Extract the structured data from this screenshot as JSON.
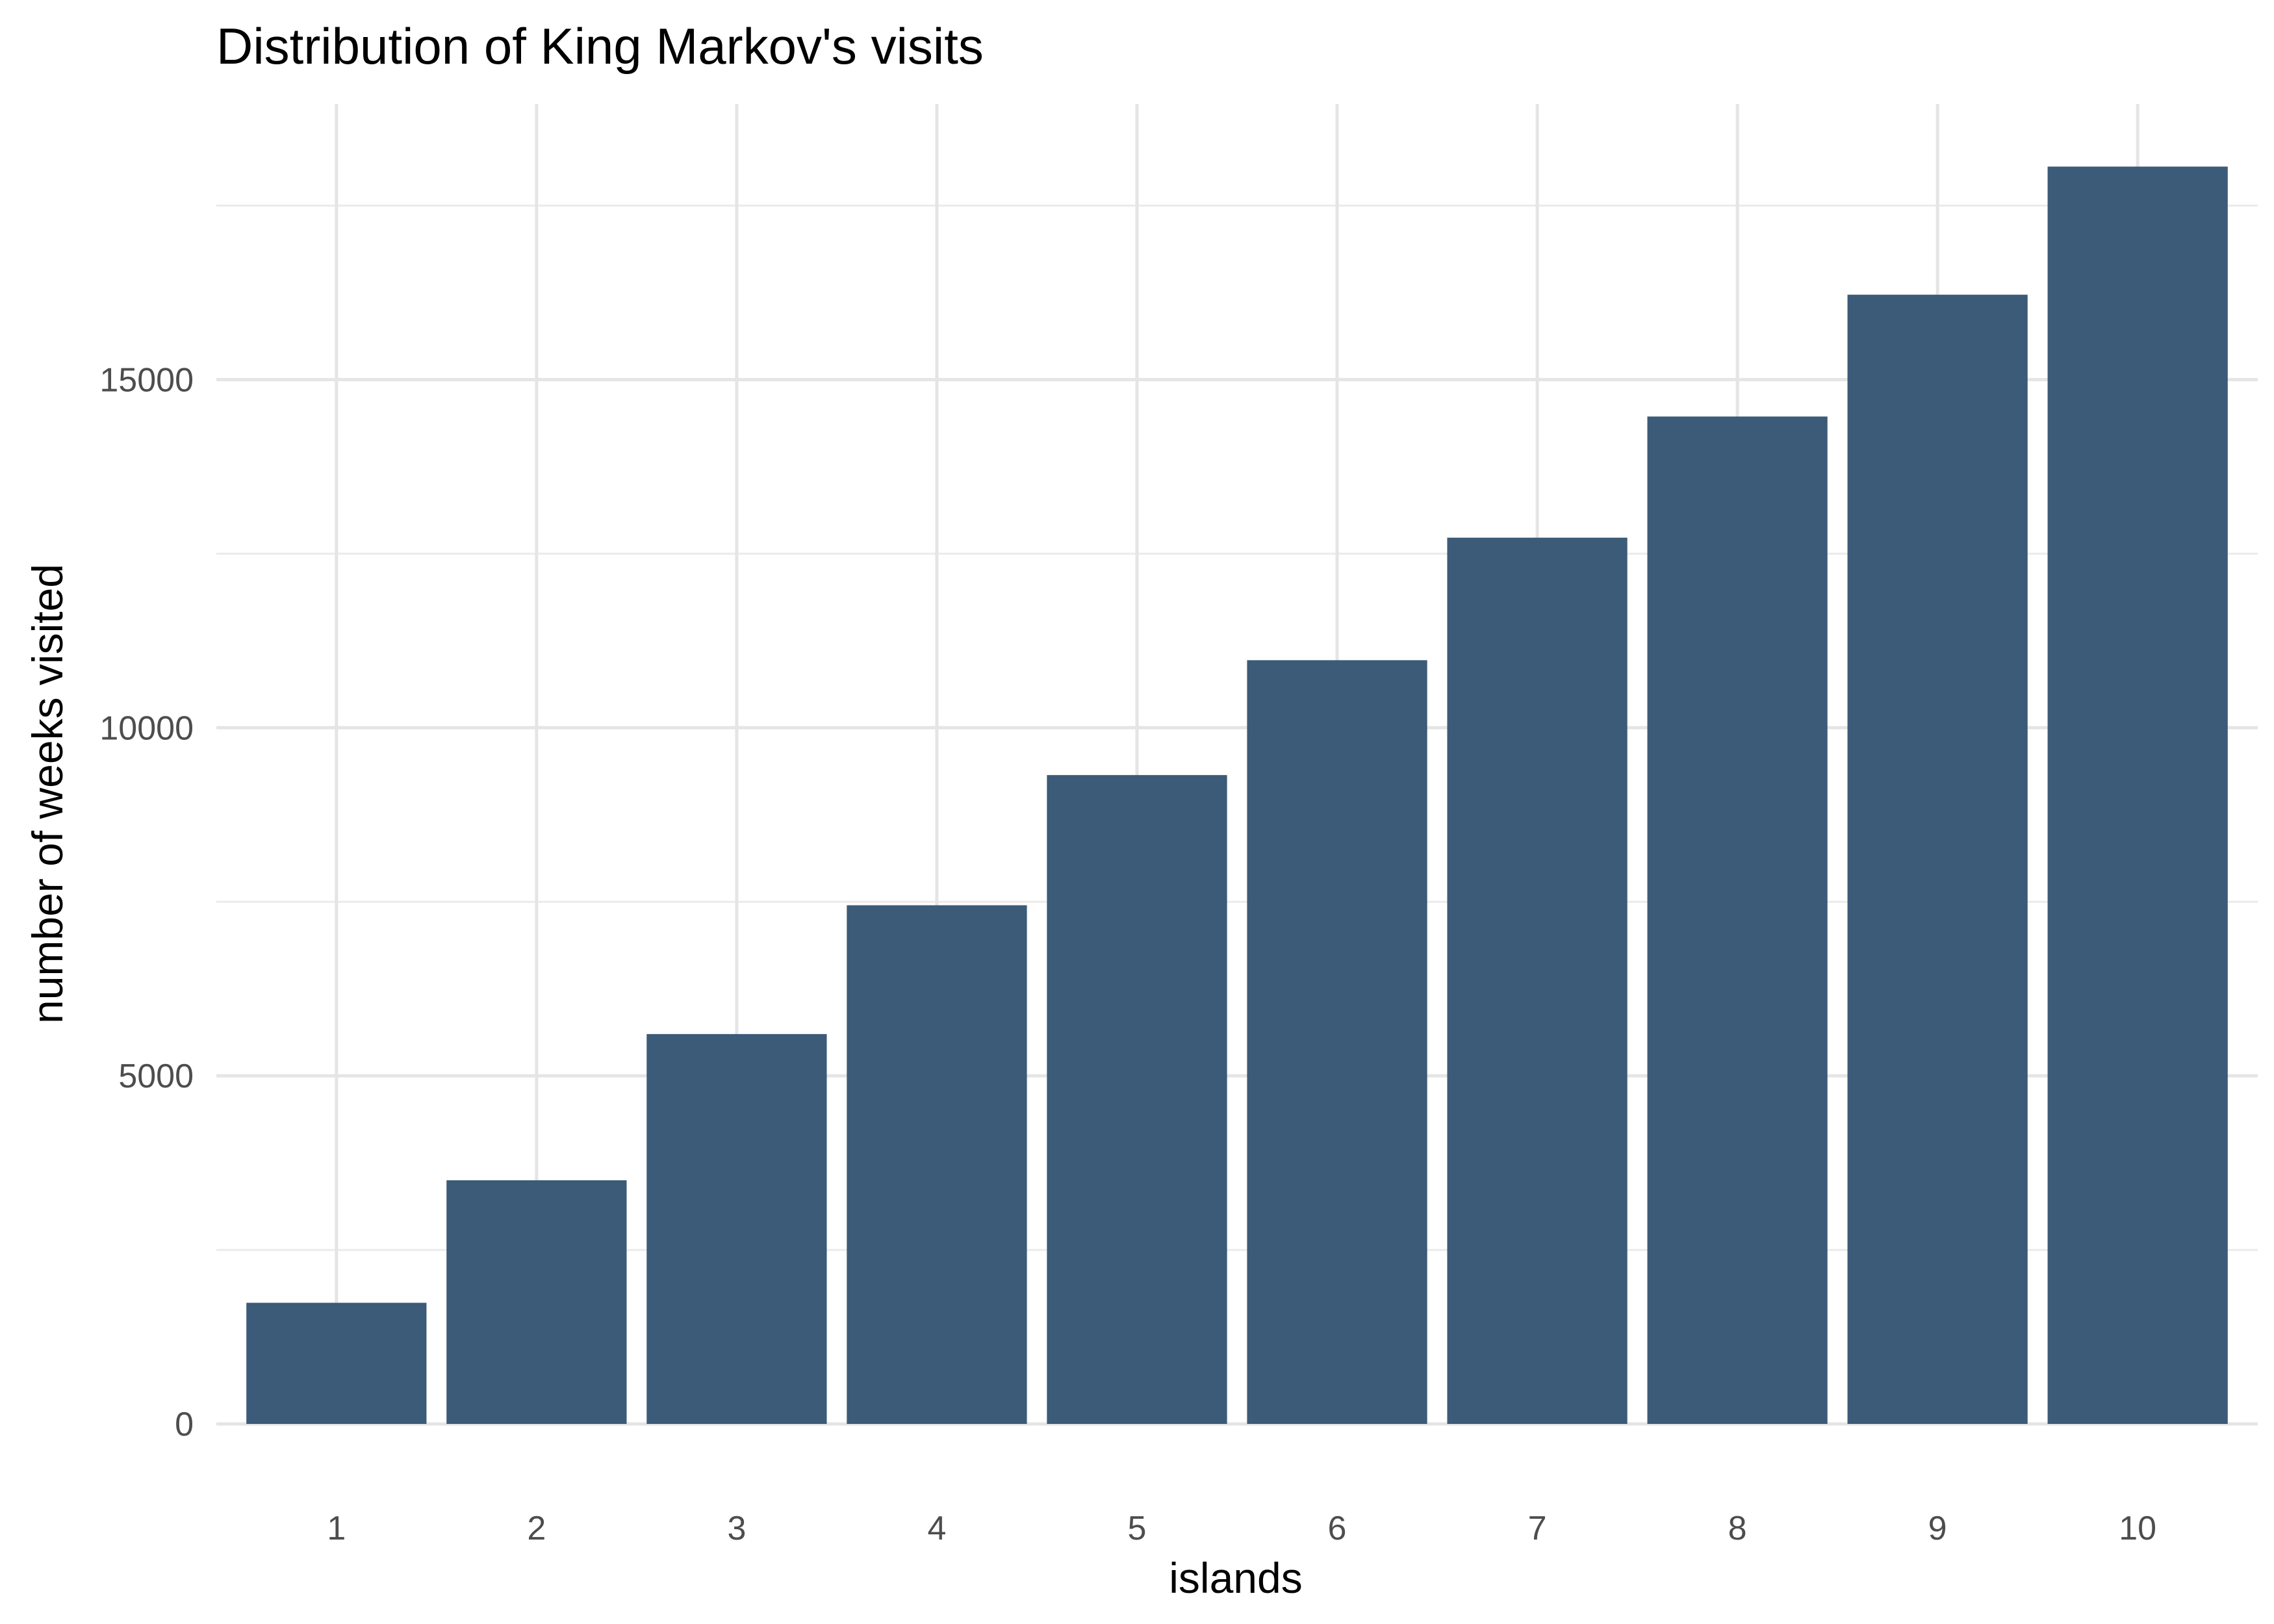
{
  "chart_data": {
    "type": "bar",
    "title": "Distribution of King Markov's visits",
    "xlabel": "islands",
    "ylabel": "number of weeks visited",
    "categories": [
      "1",
      "2",
      "3",
      "4",
      "5",
      "6",
      "7",
      "8",
      "9",
      "10"
    ],
    "values": [
      1740,
      3500,
      5600,
      7450,
      9320,
      10970,
      12730,
      14470,
      16220,
      18060
    ],
    "ylim": [
      0,
      18960
    ],
    "y_ticks": [
      "0",
      "5000",
      "10000",
      "15000"
    ],
    "y_tick_values": [
      0,
      5000,
      10000,
      15000
    ],
    "y_minor_values": [
      2500,
      7500,
      12500,
      17500
    ],
    "bar_color": "#3b5b78",
    "grid": true,
    "legend": "none"
  }
}
